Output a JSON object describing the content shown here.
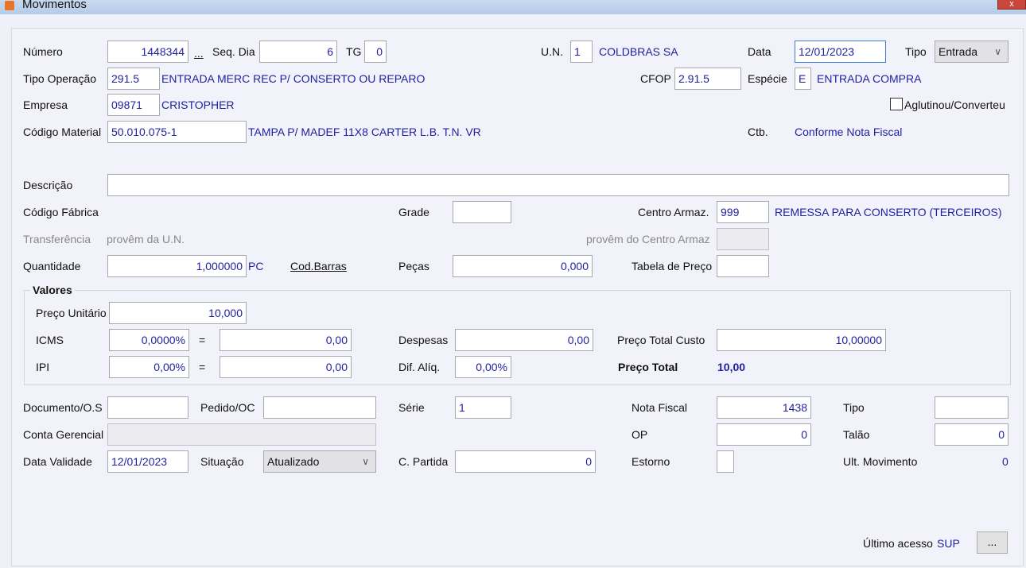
{
  "window": {
    "title": "Movimentos",
    "close": "x"
  },
  "numero": {
    "label": "Número",
    "value": "1448344",
    "more": "..."
  },
  "seq_dia": {
    "label": "Seq. Dia",
    "value": "6"
  },
  "tg": {
    "label": "TG",
    "value": "0"
  },
  "un": {
    "label": "U.N.",
    "value": "1",
    "desc": "COLDBRAS SA"
  },
  "data": {
    "label": "Data",
    "value": "12/01/2023"
  },
  "tipo": {
    "label": "Tipo",
    "value": "Entrada"
  },
  "tipo_operacao": {
    "label": "Tipo Operação",
    "value": "291.5",
    "desc": "ENTRADA MERC REC P/ CONSERTO OU REPARO"
  },
  "cfop": {
    "label": "CFOP",
    "value": "2.91.5"
  },
  "especie": {
    "label": "Espécie",
    "value": "E",
    "desc": "ENTRADA COMPRA"
  },
  "empresa": {
    "label": "Empresa",
    "value": "09871",
    "desc": "CRISTOPHER"
  },
  "aglutinou": {
    "label": "Aglutinou/Converteu",
    "checked": false
  },
  "codigo_material": {
    "label": "Código Material",
    "value": "50.010.075-1",
    "desc": "TAMPA P/ MADEF 11X8 CARTER L.B. T.N. VR"
  },
  "ctb": {
    "label": "Ctb.",
    "value": "Conforme Nota Fiscal"
  },
  "descricao": {
    "label": "Descrição",
    "value": ""
  },
  "codigo_fabrica": {
    "label": "Código Fábrica"
  },
  "grade": {
    "label": "Grade",
    "value": ""
  },
  "centro_armaz": {
    "label": "Centro Armaz.",
    "value": "999",
    "desc": "REMESSA PARA CONSERTO (TERCEIROS)"
  },
  "transferencia": {
    "label": "Transferência",
    "desc": "provêm da U.N.",
    "centro_label": "provêm do Centro Armaz"
  },
  "quantidade": {
    "label": "Quantidade",
    "value": "1,000000",
    "unit": "PC",
    "cod_barras": "Cod.Barras"
  },
  "pecas": {
    "label": "Peças",
    "value": "0,000"
  },
  "tabela_preco": {
    "label": "Tabela de Preço",
    "value": ""
  },
  "valores": {
    "title": "Valores",
    "preco_unitario": {
      "label": "Preço Unitário",
      "value": "10,000"
    },
    "icms": {
      "label": "ICMS",
      "pct": "0,0000%",
      "eq": "=",
      "value": "0,00"
    },
    "ipi": {
      "label": "IPI",
      "pct": "0,00%",
      "eq": "=",
      "value": "0,00"
    },
    "despesas": {
      "label": "Despesas",
      "value": "0,00"
    },
    "dif_aliq": {
      "label": "Dif. Alíq.",
      "value": "0,00%"
    },
    "preco_total_custo": {
      "label": "Preço Total Custo",
      "value": "10,00000"
    },
    "preco_total": {
      "label": "Preço Total",
      "value": "10,00"
    }
  },
  "documento": {
    "label": "Documento/O.S",
    "value": ""
  },
  "pedido": {
    "label": "Pedido/OC",
    "value": ""
  },
  "serie": {
    "label": "Série",
    "value": "1"
  },
  "nota_fiscal": {
    "label": "Nota Fiscal",
    "value": "1438"
  },
  "tipo2": {
    "label": "Tipo",
    "value": ""
  },
  "conta_gerencial": {
    "label": "Conta Gerencial",
    "value": ""
  },
  "op": {
    "label": "OP",
    "value": "0"
  },
  "talao": {
    "label": "Talão",
    "value": "0"
  },
  "data_validade": {
    "label": "Data Validade",
    "value": "12/01/2023"
  },
  "situacao": {
    "label": "Situação",
    "value": "Atualizado"
  },
  "c_partida": {
    "label": "C. Partida",
    "value": "0"
  },
  "estorno": {
    "label": "Estorno",
    "value": ""
  },
  "ult_movimento": {
    "label": "Ult. Movimento",
    "value": "0"
  },
  "ultimo_acesso": {
    "label": "Último acesso",
    "value": "SUP",
    "button": "..."
  }
}
